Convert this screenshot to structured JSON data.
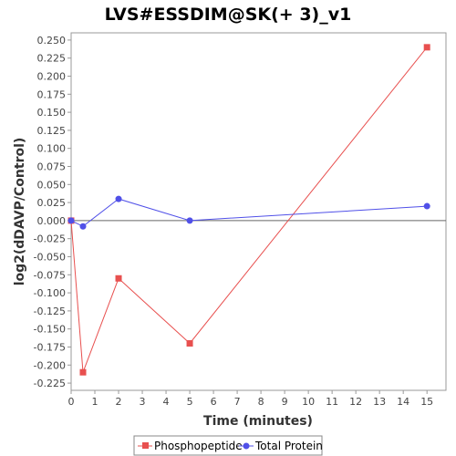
{
  "chart_data": {
    "type": "line",
    "title": "LVS#ESSDIM@SK(+ 3)_v1",
    "xlabel": "Time (minutes)",
    "ylabel": "log2(dDAVP/Control)",
    "xlim": [
      0,
      15.8
    ],
    "ylim": [
      -0.235,
      0.26
    ],
    "xticks": [
      0,
      1,
      2,
      3,
      4,
      5,
      6,
      7,
      8,
      9,
      10,
      11,
      12,
      13,
      14,
      15
    ],
    "yticks": [
      -0.225,
      -0.2,
      -0.175,
      -0.15,
      -0.125,
      -0.1,
      -0.075,
      -0.05,
      -0.025,
      0.0,
      0.025,
      0.05,
      0.075,
      0.1,
      0.125,
      0.15,
      0.175,
      0.2,
      0.225,
      0.25
    ],
    "ytick_labels": [
      "-0.225",
      "-0.200",
      "-0.175",
      "-0.150",
      "-0.125",
      "-0.100",
      "-0.075",
      "-0.050",
      "-0.025",
      "0.000",
      "0.025",
      "0.050",
      "0.075",
      "0.100",
      "0.125",
      "0.150",
      "0.175",
      "0.200",
      "0.225",
      "0.250"
    ],
    "grid": false,
    "legend": "bottom",
    "series": [
      {
        "name": "Phosphopeptide",
        "color": "#e8504f",
        "marker": "square",
        "x": [
          0,
          0.5,
          2,
          5,
          15
        ],
        "y": [
          0.0,
          -0.21,
          -0.08,
          -0.17,
          0.24
        ]
      },
      {
        "name": "Total Protein",
        "color": "#5050e8",
        "marker": "circle",
        "x": [
          0,
          0.5,
          2,
          5,
          15
        ],
        "y": [
          0.0,
          -0.008,
          0.03,
          0.0,
          0.02
        ]
      }
    ]
  }
}
